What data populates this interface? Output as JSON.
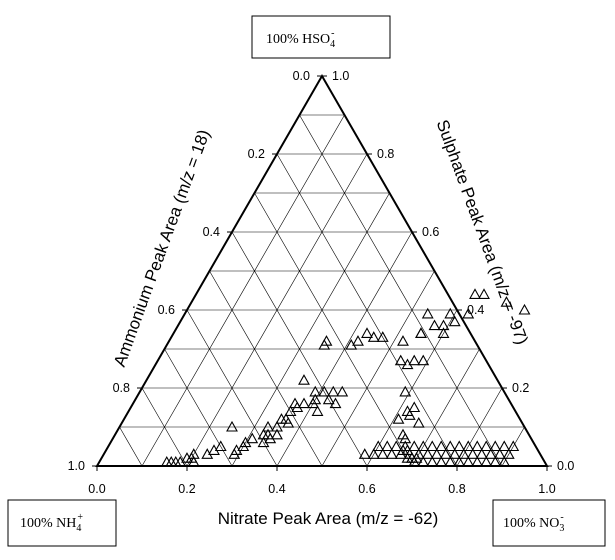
{
  "chart_data": {
    "type": "scatter",
    "subtype": "ternary",
    "marker": "open-triangle",
    "vertices": {
      "top": {
        "label": "100% HSO",
        "sub": "4",
        "sup": "-"
      },
      "left": {
        "label": "100% NH",
        "sub": "4",
        "sup": "+"
      },
      "right": {
        "label": "100% NO",
        "sub": "3",
        "sup": "-"
      }
    },
    "axes": {
      "nitrate": {
        "label": "Nitrate Peak Area (m/z = -62)",
        "ticks": [
          "0.0",
          "0.2",
          "0.4",
          "0.6",
          "0.8",
          "1.0"
        ]
      },
      "ammonium": {
        "label": "Ammonium Peak Area (m/z = 18)",
        "ticks": [
          "0.0",
          "0.2",
          "0.4",
          "0.6",
          "0.8",
          "1.0"
        ]
      },
      "sulphate": {
        "label": "Sulphate Peak Area (m/z = -97)",
        "ticks": [
          "0.0",
          "0.2",
          "0.4",
          "0.6",
          "0.8",
          "1.0"
        ]
      }
    },
    "grid_step": 0.1,
    "points": [
      [
        0.39,
        0.19
      ],
      [
        0.41,
        0.19
      ],
      [
        0.43,
        0.19
      ],
      [
        0.45,
        0.19
      ],
      [
        0.4,
        0.17
      ],
      [
        0.43,
        0.17
      ],
      [
        0.4,
        0.16
      ],
      [
        0.45,
        0.16
      ],
      [
        0.42,
        0.14
      ],
      [
        0.36,
        0.14
      ],
      [
        0.35,
        0.12
      ],
      [
        0.36,
        0.12
      ],
      [
        0.37,
        0.15
      ],
      [
        0.36,
        0.16
      ],
      [
        0.38,
        0.16
      ],
      [
        0.33,
        0.1
      ],
      [
        0.35,
        0.1
      ],
      [
        0.37,
        0.11
      ],
      [
        0.33,
        0.08
      ],
      [
        0.34,
        0.08
      ],
      [
        0.36,
        0.08
      ],
      [
        0.35,
        0.07
      ],
      [
        0.34,
        0.06
      ],
      [
        0.3,
        0.06
      ],
      [
        0.31,
        0.07
      ],
      [
        0.3,
        0.05
      ],
      [
        0.29,
        0.04
      ],
      [
        0.29,
        0.03
      ],
      [
        0.24,
        0.04
      ],
      [
        0.23,
        0.03
      ],
      [
        0.25,
        0.05
      ],
      [
        0.25,
        0.1
      ],
      [
        0.21,
        0.01
      ],
      [
        0.2,
        0.02
      ],
      [
        0.19,
        0.02
      ],
      [
        0.2,
        0.03
      ],
      [
        0.35,
        0.31
      ],
      [
        0.43,
        0.34
      ],
      [
        0.35,
        0.22
      ],
      [
        0.41,
        0.31
      ],
      [
        0.35,
        0.32
      ],
      [
        0.42,
        0.32
      ],
      [
        0.45,
        0.33
      ],
      [
        0.47,
        0.33
      ],
      [
        0.52,
        0.32
      ],
      [
        0.55,
        0.34
      ],
      [
        0.54,
        0.27
      ],
      [
        0.56,
        0.26
      ],
      [
        0.57,
        0.27
      ],
      [
        0.59,
        0.27
      ],
      [
        0.6,
        0.34
      ],
      [
        0.55,
        0.34
      ],
      [
        0.57,
        0.36
      ],
      [
        0.59,
        0.36
      ],
      [
        0.54,
        0.39
      ],
      [
        0.59,
        0.39
      ],
      [
        0.63,
        0.39
      ],
      [
        0.61,
        0.37
      ],
      [
        0.59,
        0.19
      ],
      [
        0.62,
        0.14
      ],
      [
        0.63,
        0.15
      ],
      [
        0.61,
        0.12
      ],
      [
        0.63,
        0.13
      ],
      [
        0.66,
        0.11
      ],
      [
        0.64,
        0.08
      ],
      [
        0.65,
        0.07
      ],
      [
        0.67,
        0.04
      ],
      [
        0.66,
        0.04
      ],
      [
        0.68,
        0.02
      ],
      [
        0.69,
        0.02
      ],
      [
        0.7,
        0.02
      ],
      [
        0.6,
        0.05
      ],
      [
        0.62,
        0.05
      ],
      [
        0.64,
        0.05
      ],
      [
        0.66,
        0.05
      ],
      [
        0.68,
        0.05
      ],
      [
        0.7,
        0.05
      ],
      [
        0.72,
        0.05
      ],
      [
        0.74,
        0.05
      ],
      [
        0.76,
        0.05
      ],
      [
        0.78,
        0.05
      ],
      [
        0.8,
        0.05
      ],
      [
        0.82,
        0.05
      ],
      [
        0.84,
        0.05
      ],
      [
        0.86,
        0.05
      ],
      [
        0.88,
        0.05
      ],
      [
        0.9,
        0.05
      ],
      [
        0.58,
        0.03
      ],
      [
        0.6,
        0.03
      ],
      [
        0.62,
        0.03
      ],
      [
        0.64,
        0.03
      ],
      [
        0.66,
        0.03
      ],
      [
        0.68,
        0.03
      ],
      [
        0.7,
        0.03
      ],
      [
        0.72,
        0.03
      ],
      [
        0.74,
        0.03
      ],
      [
        0.76,
        0.03
      ],
      [
        0.78,
        0.03
      ],
      [
        0.8,
        0.03
      ],
      [
        0.82,
        0.03
      ],
      [
        0.84,
        0.03
      ],
      [
        0.86,
        0.03
      ],
      [
        0.88,
        0.03
      ],
      [
        0.9,
        0.03
      ],
      [
        0.7,
        0.01
      ],
      [
        0.72,
        0.01
      ],
      [
        0.74,
        0.01
      ],
      [
        0.76,
        0.01
      ],
      [
        0.78,
        0.01
      ],
      [
        0.8,
        0.01
      ],
      [
        0.82,
        0.01
      ],
      [
        0.84,
        0.01
      ],
      [
        0.86,
        0.01
      ],
      [
        0.88,
        0.01
      ],
      [
        0.9,
        0.01
      ],
      [
        0.62,
        0.44
      ],
      [
        0.64,
        0.44
      ],
      [
        0.75,
        0.4
      ],
      [
        0.7,
        0.42
      ],
      [
        0.15,
        0.01
      ],
      [
        0.16,
        0.01
      ],
      [
        0.17,
        0.01
      ],
      [
        0.18,
        0.01
      ]
    ]
  }
}
